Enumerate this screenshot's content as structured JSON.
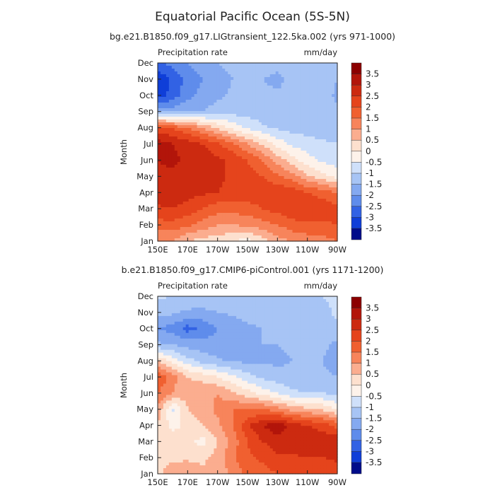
{
  "figure": {
    "title": "Equatorial Pacific Ocean (5S-5N)"
  },
  "colorbar": {
    "labels": [
      "3.5",
      "3",
      "2.5",
      "2",
      "1.5",
      "1",
      "0.5",
      "0",
      "-0.5",
      "-1",
      "-1.5",
      "-2",
      "-2.5",
      "-3",
      "-3.5"
    ],
    "colors": [
      "#8b0000",
      "#b2150a",
      "#cc2a10",
      "#e5441c",
      "#f06030",
      "#f7845b",
      "#fbad8f",
      "#fde0ce",
      "#fdf2ea",
      "#cfe0fa",
      "#a7c4f5",
      "#84a9f0",
      "#5f8ceb",
      "#3262e4",
      "#0f3ed8",
      "#000c8a"
    ]
  },
  "chart_data": [
    {
      "type": "heatmap",
      "title": "bg.e21.B1850.f09_g17.LIGtransient_122.5ka.002 (yrs 971-1000)",
      "left_label": "Precipitation rate",
      "right_label": "mm/day",
      "ylabel": "Month",
      "xlabel": "",
      "x_ticks": [
        "150E",
        "170E",
        "170W",
        "150W",
        "130W",
        "110W",
        "90W"
      ],
      "y_ticks": [
        "Jan",
        "Feb",
        "Mar",
        "Apr",
        "May",
        "Jun",
        "Jul",
        "Aug",
        "Sep",
        "Oct",
        "Nov",
        "Dec"
      ],
      "values": [
        [
          1.0,
          1.0,
          0.5,
          0.3,
          0.2,
          0.0,
          -0.2,
          0.2,
          0.8,
          1.0,
          1.2,
          1.3,
          1.5
        ],
        [
          1.8,
          1.8,
          1.6,
          1.3,
          1.0,
          1.0,
          1.1,
          1.3,
          1.5,
          1.8,
          1.9,
          1.9,
          2.0
        ],
        [
          2.4,
          2.5,
          2.3,
          2.0,
          1.7,
          1.7,
          1.8,
          2.0,
          2.2,
          2.4,
          2.4,
          2.3,
          2.2
        ],
        [
          2.8,
          2.9,
          2.7,
          2.6,
          2.5,
          2.4,
          2.3,
          2.3,
          2.4,
          2.3,
          2.0,
          1.8,
          1.5
        ],
        [
          2.9,
          2.9,
          2.8,
          2.8,
          2.6,
          2.4,
          2.2,
          2.0,
          1.6,
          1.2,
          0.6,
          0.2,
          -0.2
        ],
        [
          3.0,
          3.1,
          2.9,
          2.8,
          2.6,
          2.4,
          2.0,
          1.5,
          0.8,
          0.2,
          -0.3,
          -0.6,
          -0.8
        ],
        [
          3.3,
          3.0,
          2.8,
          2.5,
          2.1,
          1.6,
          1.0,
          0.4,
          -0.2,
          -0.6,
          -0.8,
          -0.9,
          -1.0
        ],
        [
          2.2,
          1.9,
          1.5,
          1.0,
          0.4,
          -0.2,
          -0.6,
          -0.9,
          -1.1,
          -1.2,
          -1.2,
          -1.3,
          -1.3
        ],
        [
          -1.6,
          -1.7,
          -1.5,
          -1.5,
          -1.3,
          -1.2,
          -1.2,
          -1.3,
          -1.3,
          -1.3,
          -1.2,
          -1.2,
          -1.4
        ],
        [
          -3.3,
          -2.8,
          -2.2,
          -1.8,
          -1.6,
          -1.4,
          -1.3,
          -1.3,
          -1.4,
          -1.3,
          -1.2,
          -1.3,
          -1.6
        ],
        [
          -3.4,
          -2.9,
          -2.3,
          -2.0,
          -1.8,
          -1.5,
          -1.3,
          -1.5,
          -1.7,
          -1.2,
          -1.1,
          -1.2,
          -1.5
        ],
        [
          -2.6,
          -2.3,
          -2.0,
          -1.7,
          -1.5,
          -1.3,
          -1.2,
          -1.2,
          -1.2,
          -1.1,
          -1.1,
          -1.1,
          -1.2
        ]
      ]
    },
    {
      "type": "heatmap",
      "title": "b.e21.B1850.f09_g17.CMIP6-piControl.001 (yrs 1171-1200)",
      "left_label": "Precipitation rate",
      "right_label": "mm/day",
      "ylabel": "Month",
      "xlabel": "",
      "x_ticks": [
        "150E",
        "170E",
        "170W",
        "150W",
        "130W",
        "110W",
        "90W"
      ],
      "y_ticks": [
        "Jan",
        "Feb",
        "Mar",
        "Apr",
        "May",
        "Jun",
        "Jul",
        "Aug",
        "Sep",
        "Oct",
        "Nov",
        "Dec"
      ],
      "values": [
        [
          0.4,
          0.8,
          0.9,
          0.6,
          0.6,
          1.2,
          1.6,
          1.8,
          2.0,
          2.1,
          2.0,
          2.0,
          2.2
        ],
        [
          0.3,
          0.4,
          0.4,
          0.4,
          0.7,
          1.4,
          1.9,
          2.1,
          2.4,
          2.4,
          2.5,
          2.5,
          2.6
        ],
        [
          0.5,
          0.3,
          0.2,
          -0.2,
          0.5,
          1.2,
          2.0,
          2.5,
          2.8,
          2.8,
          2.9,
          2.8,
          3.0
        ],
        [
          0.5,
          -0.2,
          0.2,
          0.5,
          0.9,
          1.5,
          2.4,
          3.0,
          3.3,
          2.8,
          2.5,
          2.3,
          1.8
        ],
        [
          0.8,
          -0.6,
          0.5,
          0.8,
          1.1,
          1.5,
          1.5,
          1.5,
          1.2,
          0.8,
          0.6,
          0.4,
          0.0
        ],
        [
          1.5,
          1.0,
          0.7,
          0.9,
          1.0,
          0.6,
          0.2,
          -0.2,
          -0.5,
          -0.9,
          -1.0,
          -1.0,
          -1.2
        ],
        [
          2.0,
          1.2,
          0.5,
          0.3,
          0.0,
          -0.4,
          -0.8,
          -1.1,
          -1.3,
          -1.4,
          -1.4,
          -1.4,
          -1.5
        ],
        [
          0.5,
          -0.2,
          -0.8,
          -1.2,
          -1.4,
          -1.6,
          -1.6,
          -1.6,
          -1.6,
          -1.5,
          -1.4,
          -1.5,
          -1.8
        ],
        [
          -1.4,
          -1.5,
          -1.7,
          -1.8,
          -1.8,
          -1.8,
          -1.6,
          -1.5,
          -1.5,
          -1.4,
          -1.4,
          -1.4,
          -1.6
        ],
        [
          -2.0,
          -2.2,
          -2.7,
          -2.4,
          -2.0,
          -1.8,
          -1.6,
          -1.5,
          -1.4,
          -1.4,
          -1.3,
          -1.3,
          -1.3
        ],
        [
          -1.3,
          -1.4,
          -1.6,
          -1.6,
          -1.5,
          -1.4,
          -1.3,
          -1.3,
          -1.3,
          -1.2,
          -1.2,
          -1.3,
          -0.8
        ],
        [
          -0.9,
          -1.0,
          -1.1,
          -1.2,
          -1.2,
          -1.2,
          -1.2,
          -1.2,
          -1.2,
          -1.2,
          -1.1,
          -1.0,
          -0.8
        ]
      ]
    }
  ]
}
